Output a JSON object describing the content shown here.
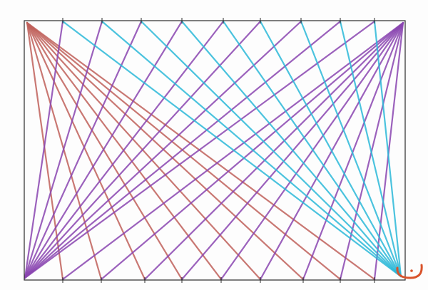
{
  "artwork": {
    "description_type": "string-art line drawing",
    "colors": {
      "frame": "#2a2a2a",
      "red_fan": "#c0605a",
      "purple_fan": "#8a45b0",
      "cyan_fan": "#2bb8d8",
      "smiley": "#d9532b"
    },
    "tick_count_per_side": 9,
    "fans": [
      {
        "name": "red-fan",
        "from_corner": "top-left",
        "to_side": "bottom",
        "color_key": "red_fan"
      },
      {
        "name": "purple-fan-bottom-left",
        "from_corner": "bottom-left",
        "to_side": "top",
        "color_key": "purple_fan"
      },
      {
        "name": "purple-fan-top-right",
        "from_corner": "top-right",
        "to_side": "bottom",
        "color_key": "purple_fan"
      },
      {
        "name": "cyan-fan",
        "from_corner": "bottom-right",
        "to_side": "top",
        "color_key": "cyan_fan"
      }
    ],
    "smiley_icon": "smiley-face-icon"
  }
}
